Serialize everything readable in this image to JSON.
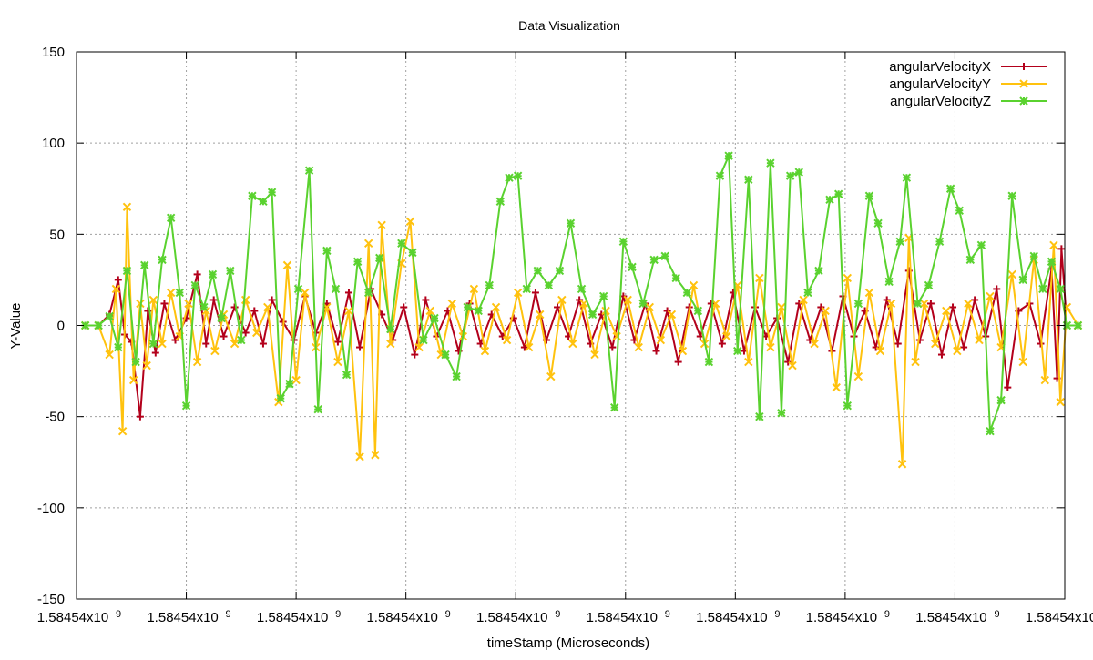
{
  "chart_data": {
    "type": "line",
    "title": "Data Visualization",
    "xlabel": "timeStamp (Microseconds)",
    "ylabel": "Y-Value",
    "ylim": [
      -150,
      150
    ],
    "y_ticks": [
      -150,
      -100,
      -50,
      0,
      50,
      100,
      150
    ],
    "x_ticks": [
      {
        "mantissa": "1.58454x10",
        "exponent": "9"
      },
      {
        "mantissa": "1.58454x10",
        "exponent": "9"
      },
      {
        "mantissa": "1.58454x10",
        "exponent": "9"
      },
      {
        "mantissa": "1.58454x10",
        "exponent": "9"
      },
      {
        "mantissa": "1.58454x10",
        "exponent": "9"
      },
      {
        "mantissa": "1.58454x10",
        "exponent": "9"
      },
      {
        "mantissa": "1.58454x10",
        "exponent": "9"
      },
      {
        "mantissa": "1.58454x10",
        "exponent": "9"
      },
      {
        "mantissa": "1.58454x10",
        "exponent": "9"
      },
      {
        "mantissa": "1.58454x10",
        "exponent": "9"
      }
    ],
    "grid": true,
    "legend_position": "top-right",
    "x_range": [
      0,
      9
    ],
    "series": [
      {
        "name": "angularVelocityX",
        "color": "#b3001b",
        "marker": "plus",
        "points": [
          [
            0.08,
            0
          ],
          [
            0.2,
            0
          ],
          [
            0.3,
            6
          ],
          [
            0.38,
            25
          ],
          [
            0.44,
            -5
          ],
          [
            0.5,
            -9
          ],
          [
            0.58,
            -50
          ],
          [
            0.65,
            8
          ],
          [
            0.72,
            -15
          ],
          [
            0.8,
            12
          ],
          [
            0.9,
            -8
          ],
          [
            1.0,
            4
          ],
          [
            1.1,
            28
          ],
          [
            1.18,
            -10
          ],
          [
            1.25,
            14
          ],
          [
            1.34,
            -6
          ],
          [
            1.44,
            10
          ],
          [
            1.54,
            -4
          ],
          [
            1.62,
            8
          ],
          [
            1.7,
            -10
          ],
          [
            1.78,
            14
          ],
          [
            1.88,
            2
          ],
          [
            1.98,
            -8
          ],
          [
            2.08,
            16
          ],
          [
            2.18,
            -4
          ],
          [
            2.28,
            12
          ],
          [
            2.38,
            -9
          ],
          [
            2.48,
            18
          ],
          [
            2.58,
            -12
          ],
          [
            2.68,
            20
          ],
          [
            2.78,
            6
          ],
          [
            2.88,
            -8
          ],
          [
            2.98,
            10
          ],
          [
            3.08,
            -16
          ],
          [
            3.18,
            14
          ],
          [
            3.28,
            -6
          ],
          [
            3.38,
            8
          ],
          [
            3.48,
            -14
          ],
          [
            3.58,
            12
          ],
          [
            3.68,
            -10
          ],
          [
            3.78,
            6
          ],
          [
            3.88,
            -6
          ],
          [
            3.98,
            4
          ],
          [
            4.08,
            -12
          ],
          [
            4.18,
            18
          ],
          [
            4.28,
            -8
          ],
          [
            4.38,
            10
          ],
          [
            4.48,
            -6
          ],
          [
            4.58,
            14
          ],
          [
            4.68,
            -10
          ],
          [
            4.78,
            6
          ],
          [
            4.88,
            -12
          ],
          [
            4.98,
            16
          ],
          [
            5.08,
            -8
          ],
          [
            5.18,
            12
          ],
          [
            5.28,
            -14
          ],
          [
            5.38,
            8
          ],
          [
            5.48,
            -20
          ],
          [
            5.58,
            10
          ],
          [
            5.68,
            -6
          ],
          [
            5.78,
            12
          ],
          [
            5.88,
            -10
          ],
          [
            5.98,
            18
          ],
          [
            6.08,
            -14
          ],
          [
            6.18,
            10
          ],
          [
            6.28,
            -6
          ],
          [
            6.38,
            4
          ],
          [
            6.48,
            -20
          ],
          [
            6.58,
            12
          ],
          [
            6.68,
            -8
          ],
          [
            6.78,
            10
          ],
          [
            6.88,
            -14
          ],
          [
            6.98,
            16
          ],
          [
            7.08,
            -6
          ],
          [
            7.18,
            8
          ],
          [
            7.28,
            -12
          ],
          [
            7.38,
            14
          ],
          [
            7.48,
            -10
          ],
          [
            7.58,
            30
          ],
          [
            7.68,
            -8
          ],
          [
            7.78,
            12
          ],
          [
            7.88,
            -16
          ],
          [
            7.98,
            10
          ],
          [
            8.08,
            -12
          ],
          [
            8.18,
            14
          ],
          [
            8.28,
            -6
          ],
          [
            8.38,
            20
          ],
          [
            8.48,
            -34
          ],
          [
            8.58,
            8
          ],
          [
            8.68,
            12
          ],
          [
            8.78,
            -10
          ],
          [
            8.88,
            31
          ],
          [
            8.93,
            -29
          ],
          [
            8.97,
            42
          ],
          [
            9.02,
            0
          ],
          [
            9.12,
            0
          ]
        ]
      },
      {
        "name": "angularVelocityY",
        "color": "#ffc20e",
        "marker": "cross",
        "points": [
          [
            0.08,
            0
          ],
          [
            0.2,
            0
          ],
          [
            0.3,
            -16
          ],
          [
            0.36,
            20
          ],
          [
            0.42,
            -58
          ],
          [
            0.46,
            65
          ],
          [
            0.52,
            -30
          ],
          [
            0.58,
            12
          ],
          [
            0.64,
            -22
          ],
          [
            0.7,
            14
          ],
          [
            0.78,
            -10
          ],
          [
            0.86,
            18
          ],
          [
            0.94,
            -6
          ],
          [
            1.02,
            12
          ],
          [
            1.1,
            -20
          ],
          [
            1.18,
            8
          ],
          [
            1.26,
            -14
          ],
          [
            1.34,
            6
          ],
          [
            1.44,
            -10
          ],
          [
            1.54,
            14
          ],
          [
            1.64,
            -4
          ],
          [
            1.74,
            10
          ],
          [
            1.84,
            -42
          ],
          [
            1.92,
            33
          ],
          [
            2.0,
            -30
          ],
          [
            2.08,
            18
          ],
          [
            2.18,
            -12
          ],
          [
            2.28,
            10
          ],
          [
            2.38,
            -20
          ],
          [
            2.48,
            8
          ],
          [
            2.58,
            -72
          ],
          [
            2.66,
            45
          ],
          [
            2.72,
            -71
          ],
          [
            2.78,
            55
          ],
          [
            2.86,
            -10
          ],
          [
            2.96,
            34
          ],
          [
            3.04,
            57
          ],
          [
            3.12,
            -12
          ],
          [
            3.22,
            8
          ],
          [
            3.32,
            -16
          ],
          [
            3.42,
            12
          ],
          [
            3.52,
            -6
          ],
          [
            3.62,
            20
          ],
          [
            3.72,
            -14
          ],
          [
            3.82,
            10
          ],
          [
            3.92,
            -8
          ],
          [
            4.02,
            18
          ],
          [
            4.12,
            -12
          ],
          [
            4.22,
            6
          ],
          [
            4.32,
            -28
          ],
          [
            4.42,
            14
          ],
          [
            4.52,
            -10
          ],
          [
            4.62,
            12
          ],
          [
            4.72,
            -16
          ],
          [
            4.82,
            8
          ],
          [
            4.92,
            -6
          ],
          [
            5.02,
            14
          ],
          [
            5.12,
            -12
          ],
          [
            5.22,
            10
          ],
          [
            5.32,
            -8
          ],
          [
            5.42,
            6
          ],
          [
            5.52,
            -14
          ],
          [
            5.62,
            22
          ],
          [
            5.72,
            -10
          ],
          [
            5.82,
            12
          ],
          [
            5.92,
            -6
          ],
          [
            6.02,
            22
          ],
          [
            6.12,
            -20
          ],
          [
            6.22,
            26
          ],
          [
            6.32,
            -12
          ],
          [
            6.42,
            10
          ],
          [
            6.52,
            -22
          ],
          [
            6.62,
            14
          ],
          [
            6.72,
            -10
          ],
          [
            6.82,
            8
          ],
          [
            6.92,
            -34
          ],
          [
            7.02,
            26
          ],
          [
            7.12,
            -28
          ],
          [
            7.22,
            18
          ],
          [
            7.32,
            -14
          ],
          [
            7.42,
            12
          ],
          [
            7.52,
            -76
          ],
          [
            7.58,
            48
          ],
          [
            7.64,
            -20
          ],
          [
            7.72,
            12
          ],
          [
            7.82,
            -10
          ],
          [
            7.92,
            8
          ],
          [
            8.02,
            -14
          ],
          [
            8.12,
            12
          ],
          [
            8.22,
            -8
          ],
          [
            8.32,
            16
          ],
          [
            8.42,
            -12
          ],
          [
            8.52,
            28
          ],
          [
            8.62,
            -20
          ],
          [
            8.72,
            36
          ],
          [
            8.82,
            -30
          ],
          [
            8.9,
            44
          ],
          [
            8.96,
            -42
          ],
          [
            9.02,
            10
          ],
          [
            9.12,
            0
          ]
        ]
      },
      {
        "name": "angularVelocityZ",
        "color": "#5ad22f",
        "marker": "star",
        "points": [
          [
            0.08,
            0
          ],
          [
            0.2,
            0
          ],
          [
            0.3,
            5
          ],
          [
            0.38,
            -12
          ],
          [
            0.46,
            30
          ],
          [
            0.54,
            -20
          ],
          [
            0.62,
            33
          ],
          [
            0.7,
            -10
          ],
          [
            0.78,
            36
          ],
          [
            0.86,
            59
          ],
          [
            0.94,
            18
          ],
          [
            1.0,
            -44
          ],
          [
            1.08,
            22
          ],
          [
            1.16,
            10
          ],
          [
            1.24,
            28
          ],
          [
            1.32,
            4
          ],
          [
            1.4,
            30
          ],
          [
            1.5,
            -8
          ],
          [
            1.6,
            71
          ],
          [
            1.7,
            68
          ],
          [
            1.78,
            73
          ],
          [
            1.86,
            -40
          ],
          [
            1.94,
            -32
          ],
          [
            2.02,
            20
          ],
          [
            2.12,
            85
          ],
          [
            2.2,
            -46
          ],
          [
            2.28,
            41
          ],
          [
            2.36,
            20
          ],
          [
            2.46,
            -27
          ],
          [
            2.56,
            35
          ],
          [
            2.66,
            18
          ],
          [
            2.76,
            37
          ],
          [
            2.86,
            -2
          ],
          [
            2.96,
            45
          ],
          [
            3.06,
            40
          ],
          [
            3.16,
            -8
          ],
          [
            3.26,
            4
          ],
          [
            3.36,
            -16
          ],
          [
            3.46,
            -28
          ],
          [
            3.56,
            10
          ],
          [
            3.66,
            8
          ],
          [
            3.76,
            22
          ],
          [
            3.86,
            68
          ],
          [
            3.94,
            81
          ],
          [
            4.02,
            82
          ],
          [
            4.1,
            20
          ],
          [
            4.2,
            30
          ],
          [
            4.3,
            22
          ],
          [
            4.4,
            30
          ],
          [
            4.5,
            56
          ],
          [
            4.6,
            20
          ],
          [
            4.7,
            6
          ],
          [
            4.8,
            16
          ],
          [
            4.9,
            -45
          ],
          [
            4.98,
            46
          ],
          [
            5.06,
            32
          ],
          [
            5.16,
            12
          ],
          [
            5.26,
            36
          ],
          [
            5.36,
            38
          ],
          [
            5.46,
            26
          ],
          [
            5.56,
            18
          ],
          [
            5.66,
            8
          ],
          [
            5.76,
            -20
          ],
          [
            5.86,
            82
          ],
          [
            5.94,
            93
          ],
          [
            6.02,
            -14
          ],
          [
            6.12,
            80
          ],
          [
            6.22,
            -50
          ],
          [
            6.32,
            89
          ],
          [
            6.42,
            -48
          ],
          [
            6.5,
            82
          ],
          [
            6.58,
            84
          ],
          [
            6.66,
            18
          ],
          [
            6.76,
            30
          ],
          [
            6.86,
            69
          ],
          [
            6.94,
            72
          ],
          [
            7.02,
            -44
          ],
          [
            7.12,
            12
          ],
          [
            7.22,
            71
          ],
          [
            7.3,
            56
          ],
          [
            7.4,
            24
          ],
          [
            7.5,
            46
          ],
          [
            7.56,
            81
          ],
          [
            7.66,
            12
          ],
          [
            7.76,
            22
          ],
          [
            7.86,
            46
          ],
          [
            7.96,
            75
          ],
          [
            8.04,
            63
          ],
          [
            8.14,
            36
          ],
          [
            8.24,
            44
          ],
          [
            8.32,
            -58
          ],
          [
            8.42,
            -41
          ],
          [
            8.52,
            71
          ],
          [
            8.62,
            25
          ],
          [
            8.72,
            38
          ],
          [
            8.8,
            20
          ],
          [
            8.88,
            35
          ],
          [
            8.96,
            20
          ],
          [
            9.02,
            0
          ],
          [
            9.12,
            0
          ]
        ]
      }
    ]
  }
}
